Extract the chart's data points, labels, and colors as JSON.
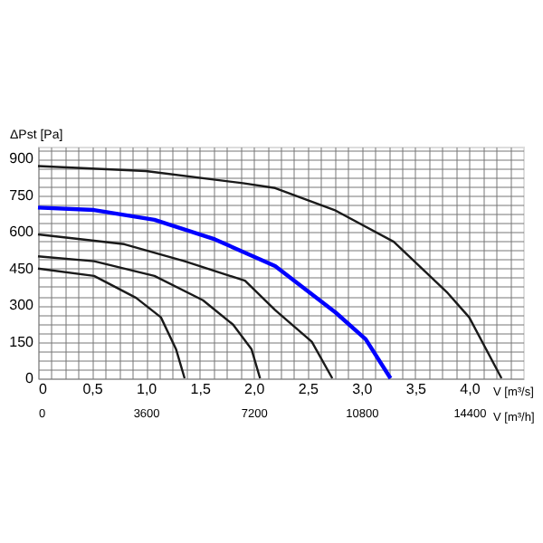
{
  "chart_data": {
    "type": "line",
    "xlabel": "V [m³/s]",
    "x2label": "V [m³/h]",
    "ylabel": "ΔPst [Pa]",
    "xlim": [
      0,
      4.5
    ],
    "ylim": [
      0,
      950
    ],
    "x2lim": [
      0,
      16200
    ],
    "xticks": [
      0,
      {
        "value": 0.125,
        "label": null
      },
      {
        "value": 0.25,
        "label": null
      },
      {
        "value": 0.375,
        "label": null
      },
      {
        "value": 0.5,
        "label": "0,5"
      },
      {
        "value": 0.625,
        "label": null
      },
      {
        "value": 0.75,
        "label": null
      },
      {
        "value": 0.875,
        "label": null
      },
      {
        "value": 1.0,
        "label": "1,0"
      },
      {
        "value": 1.125,
        "label": null
      },
      {
        "value": 1.25,
        "label": null
      },
      {
        "value": 1.375,
        "label": null
      },
      {
        "value": 1.5,
        "label": "1,5"
      },
      {
        "value": 1.625,
        "label": null
      },
      {
        "value": 1.75,
        "label": null
      },
      {
        "value": 1.875,
        "label": null
      },
      {
        "value": 2.0,
        "label": "2,0"
      },
      {
        "value": 2.125,
        "label": null
      },
      {
        "value": 2.25,
        "label": null
      },
      {
        "value": 2.375,
        "label": null
      },
      {
        "value": 2.5,
        "label": "2,5"
      },
      {
        "value": 2.625,
        "label": null
      },
      {
        "value": 2.75,
        "label": null
      },
      {
        "value": 2.875,
        "label": null
      },
      {
        "value": 3.0,
        "label": "3,0"
      },
      {
        "value": 3.125,
        "label": null
      },
      {
        "value": 3.25,
        "label": null
      },
      {
        "value": 3.375,
        "label": null
      },
      {
        "value": 3.5,
        "label": "3,5"
      },
      {
        "value": 3.625,
        "label": null
      },
      {
        "value": 3.75,
        "label": null
      },
      {
        "value": 3.875,
        "label": null
      },
      {
        "value": 4.0,
        "label": "4,0"
      },
      {
        "value": 4.125,
        "label": null
      },
      {
        "value": 4.25,
        "label": null
      },
      {
        "value": 4.375,
        "label": null
      }
    ],
    "x2ticks": [
      0,
      3600,
      7200,
      10800,
      14400
    ],
    "yticks": [
      0,
      {
        "value": 37.5,
        "label": null
      },
      {
        "value": 75,
        "label": null
      },
      {
        "value": 112.5,
        "label": null
      },
      150,
      {
        "value": 187.5,
        "label": null
      },
      {
        "value": 225,
        "label": null
      },
      {
        "value": 262.5,
        "label": null
      },
      300,
      {
        "value": 337.5,
        "label": null
      },
      {
        "value": 375,
        "label": null
      },
      {
        "value": 412.5,
        "label": null
      },
      450,
      {
        "value": 487.5,
        "label": null
      },
      {
        "value": 525,
        "label": null
      },
      {
        "value": 562.5,
        "label": null
      },
      600,
      {
        "value": 637.5,
        "label": null
      },
      {
        "value": 675,
        "label": null
      },
      {
        "value": 712.5,
        "label": null
      },
      750,
      {
        "value": 787.5,
        "label": null
      },
      {
        "value": 825,
        "label": null
      },
      {
        "value": 862.5,
        "label": null
      },
      900,
      {
        "value": 937.5,
        "label": null
      }
    ],
    "grid": true,
    "legend": false,
    "marker": "none",
    "line_style": "solid",
    "series": [
      {
        "color": "#1a1a1a",
        "x": [
          0,
          1.0,
          1.9,
          2.2,
          2.75,
          3.3,
          3.8,
          4.0,
          4.3
        ],
        "values": [
          870,
          850,
          800,
          780,
          690,
          560,
          350,
          250,
          0
        ]
      },
      {
        "color": "#0000ff",
        "x": [
          0,
          0.52,
          1.08,
          1.64,
          2.2,
          2.76,
          3.04,
          3.27
        ],
        "values": [
          700,
          690,
          650,
          570,
          460,
          270,
          160,
          0
        ]
      },
      {
        "color": "#1a1a1a",
        "x": [
          0,
          0.8,
          1.36,
          1.92,
          2.2,
          2.54,
          2.73
        ],
        "values": [
          590,
          550,
          480,
          400,
          280,
          150,
          0
        ]
      },
      {
        "color": "#1a1a1a",
        "x": [
          0,
          0.52,
          1.08,
          1.53,
          1.81,
          1.98,
          2.06
        ],
        "values": [
          500,
          480,
          420,
          320,
          220,
          120,
          0
        ]
      },
      {
        "color": "#1a1a1a",
        "x": [
          0,
          0.52,
          0.91,
          1.14,
          1.28,
          1.36
        ],
        "values": [
          450,
          420,
          330,
          250,
          120,
          0
        ]
      }
    ]
  }
}
